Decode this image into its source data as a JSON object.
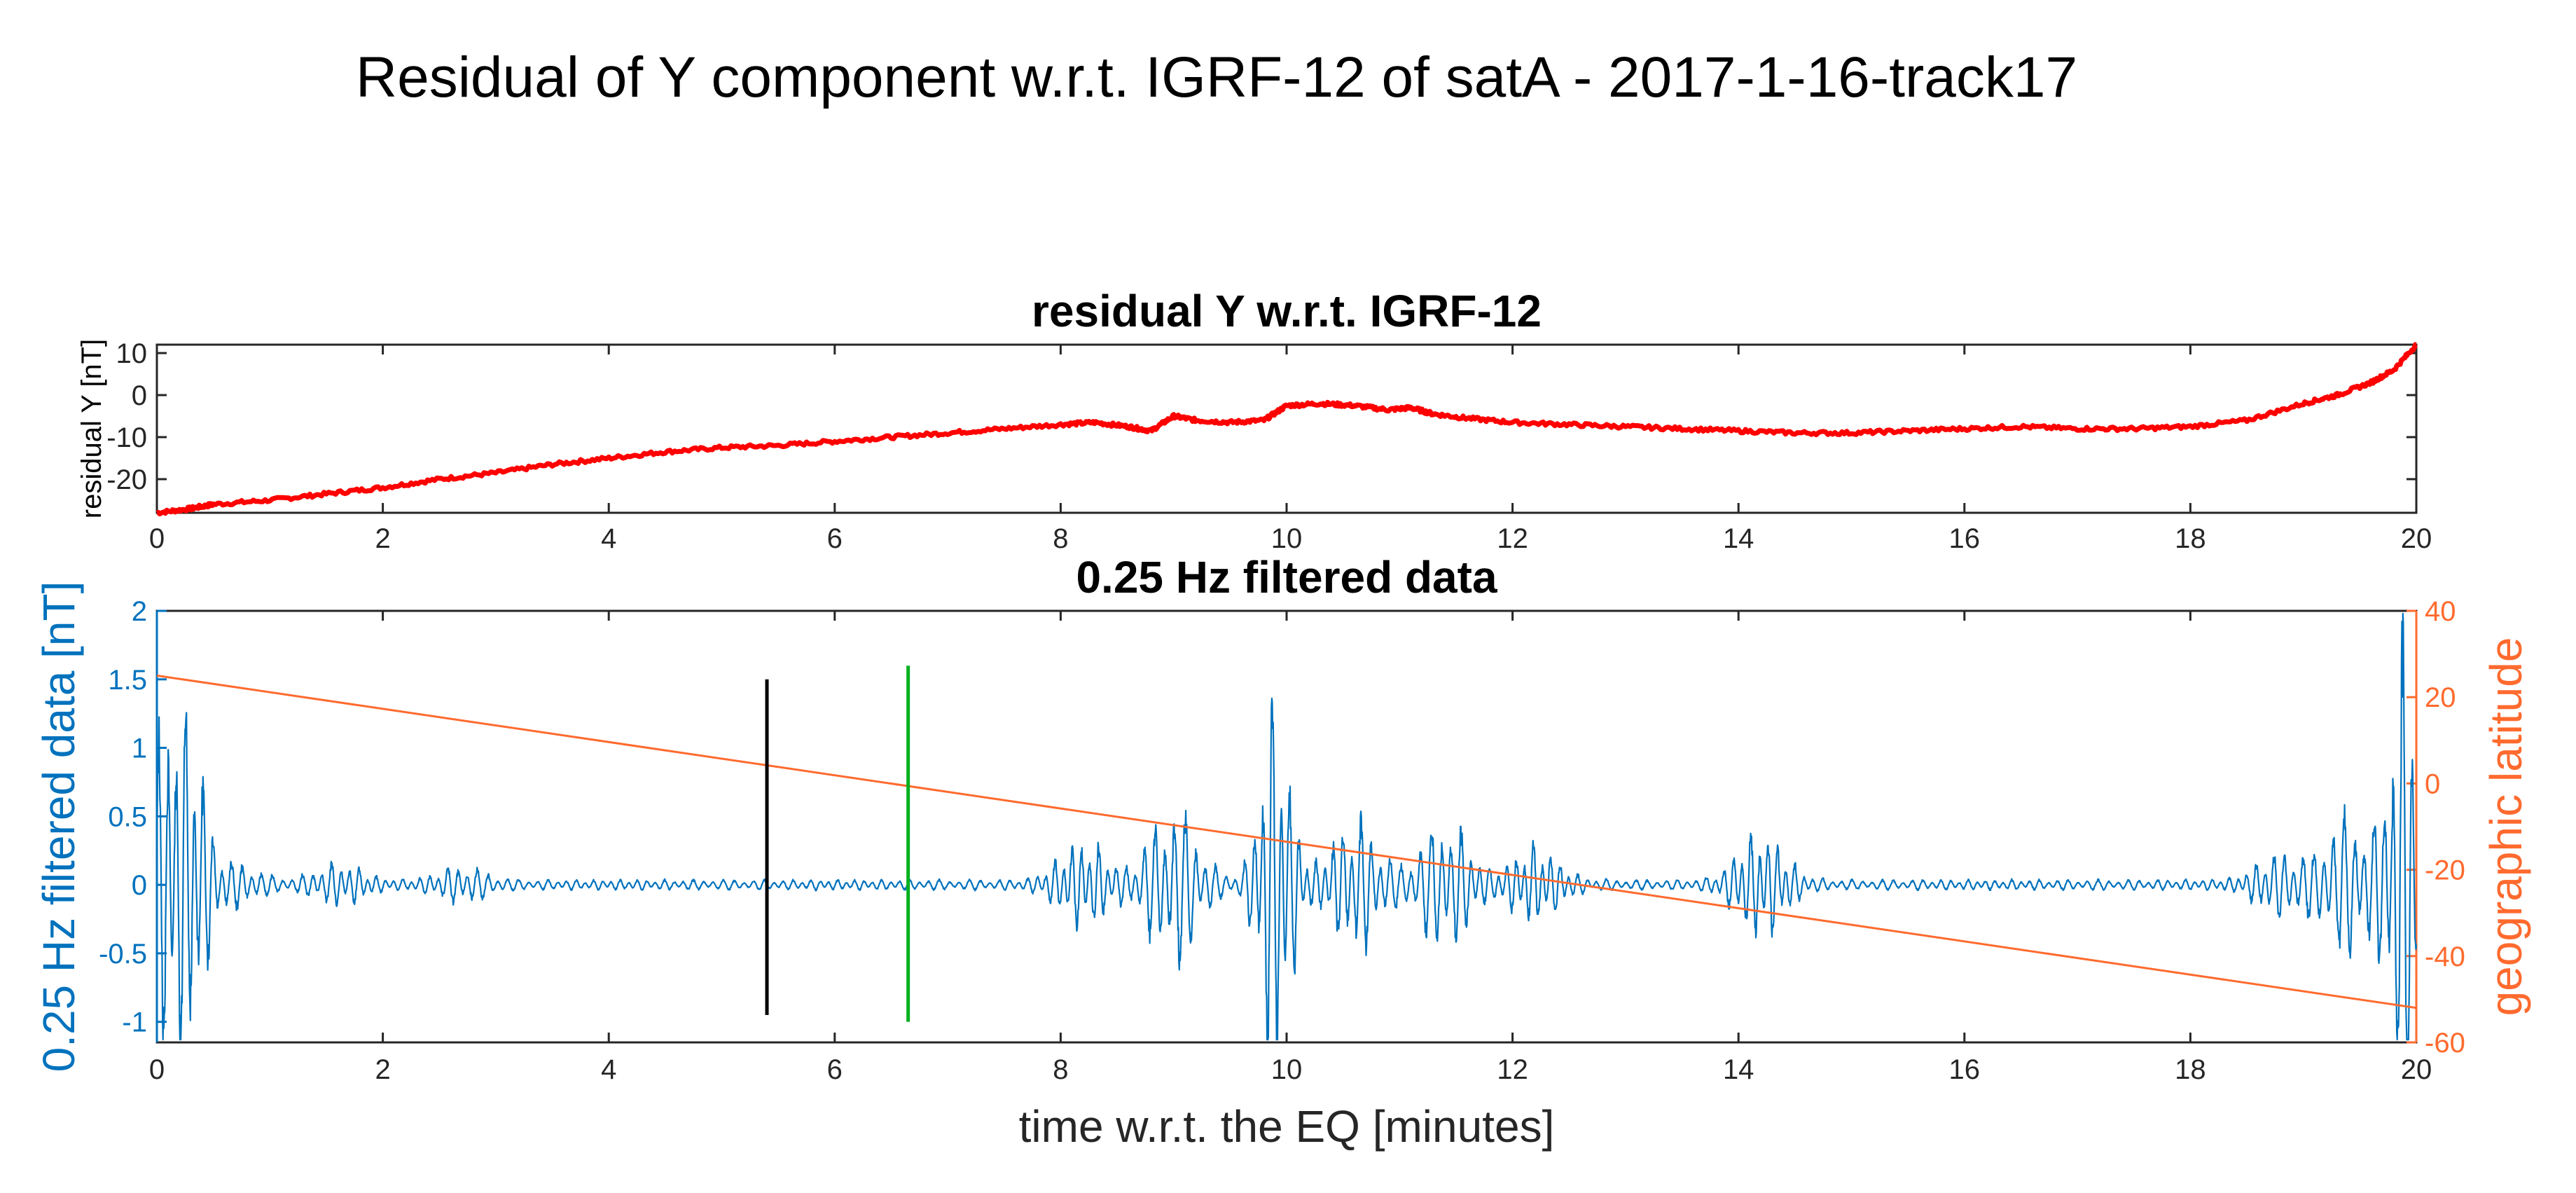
{
  "figure": {
    "title": "Residual of Y component w.r.t. IGRF-12 of satA - 2017-1-16-track17"
  },
  "colors": {
    "residual": "#ff0000",
    "filtered": "#0072bd",
    "latitude": "#ff6a2e",
    "marker_black": "#000000",
    "marker_green": "#00b020",
    "axes": "#262626"
  },
  "chart_data": [
    {
      "type": "line",
      "title": "residual Y w.r.t. IGRF-12",
      "xlabel": "",
      "ylabel": "residual Y [nT]",
      "xlim": [
        0,
        20
      ],
      "ylim": [
        -28,
        12
      ],
      "xticks": [
        0,
        2,
        4,
        6,
        8,
        10,
        12,
        14,
        16,
        18,
        20
      ],
      "yticks": [
        10,
        0,
        -10,
        -20
      ],
      "series": [
        {
          "name": "residual Y",
          "x": [
            0,
            0.3,
            0.5,
            1,
            1.5,
            2,
            2.5,
            3,
            3.5,
            4,
            4.5,
            5,
            5.5,
            6,
            6.5,
            7,
            7.5,
            8,
            8.3,
            8.6,
            8.8,
            9.0,
            9.2,
            9.5,
            9.8,
            10.0,
            10.3,
            10.6,
            10.9,
            11.1,
            11.3,
            11.6,
            12,
            12.5,
            13,
            13.5,
            14,
            14.5,
            15,
            15.5,
            16,
            16.5,
            17,
            17.5,
            18,
            18.5,
            19,
            19.3,
            19.6,
            19.8,
            20
          ],
          "y": [
            -28,
            -27,
            -26,
            -25,
            -23.5,
            -22,
            -20,
            -18.5,
            -16.5,
            -15,
            -13.5,
            -12.5,
            -12,
            -11,
            -10,
            -9,
            -8,
            -7,
            -6.5,
            -7.5,
            -8.5,
            -5,
            -6,
            -6.5,
            -6,
            -2.5,
            -2,
            -2.5,
            -3.5,
            -3,
            -4.5,
            -5.5,
            -6.5,
            -7,
            -7.5,
            -8,
            -8.5,
            -9,
            -9,
            -8.5,
            -8,
            -7.5,
            -8,
            -8,
            -7.5,
            -6,
            -2,
            0,
            3,
            6,
            12
          ]
        }
      ]
    },
    {
      "type": "line",
      "title": "0.25 Hz filtered data",
      "xlabel": "time w.r.t. the EQ [minutes]",
      "ylabel": "0.25 Hz filtered data [nT]",
      "ylabel_right": "geographic latitude",
      "xlim": [
        0,
        20
      ],
      "ylim": [
        -1.15,
        2
      ],
      "ylim_right": [
        -60,
        40
      ],
      "xticks": [
        0,
        2,
        4,
        6,
        8,
        10,
        12,
        14,
        16,
        18,
        20
      ],
      "yticks": [
        2,
        1.5,
        1,
        0.5,
        0,
        -0.5,
        -1
      ],
      "yticks_right": [
        40,
        20,
        0,
        -20,
        -40,
        -60
      ],
      "series": [
        {
          "name": "0.25 Hz filtered data",
          "axis": "left",
          "generated_waveform": true,
          "burst_envelope": [
            {
              "t": 0.05,
              "amp": 1.0
            },
            {
              "t": 0.3,
              "amp": 1.05
            },
            {
              "t": 0.7,
              "amp": 0.12
            },
            {
              "t": 1.6,
              "amp": 0.12
            },
            {
              "t": 2.7,
              "amp": 0.1
            },
            {
              "t": 8.2,
              "amp": 0.3
            },
            {
              "t": 9.0,
              "amp": 0.55
            },
            {
              "t": 9.9,
              "amp": 1.3
            },
            {
              "t": 10.6,
              "amp": 0.45
            },
            {
              "t": 11.4,
              "amp": 0.45
            },
            {
              "t": 12.2,
              "amp": 0.25
            },
            {
              "t": 14.2,
              "amp": 0.35
            },
            {
              "t": 18.8,
              "amp": 0.2
            },
            {
              "t": 19.4,
              "amp": 0.5
            },
            {
              "t": 19.9,
              "amp": 1.7
            }
          ]
        },
        {
          "name": "geographic latitude",
          "axis": "right",
          "x": [
            0,
            20
          ],
          "y": [
            25,
            -52
          ]
        }
      ],
      "vertical_markers": [
        {
          "name": "black marker",
          "x": 5.4,
          "y_range": [
            -0.95,
            1.5
          ]
        },
        {
          "name": "green marker",
          "x": 6.65,
          "y_range": [
            -1.0,
            1.6
          ]
        }
      ]
    }
  ]
}
